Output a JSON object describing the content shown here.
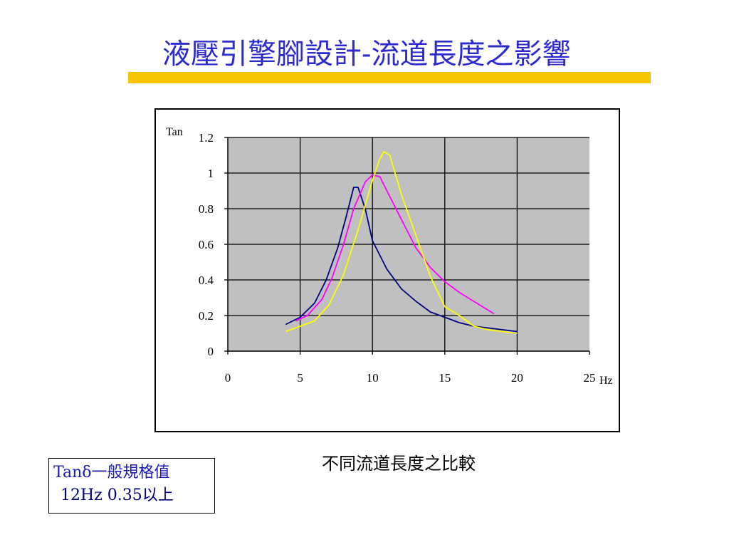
{
  "slide": {
    "title": "液壓引擎腳設計-流道長度之影響",
    "caption": "不同流道長度之比較",
    "note_line1": "Tanδ一般規格值",
    "note_line2": "12Hz 0.35以上",
    "colors": {
      "title": "#2b2bd0",
      "underline": "#f6c400",
      "plot_bg": "#c0c0c0"
    }
  },
  "chart_data": {
    "type": "line",
    "title": "",
    "xlabel": "Hz",
    "ylabel": "Tan",
    "xlim": [
      0,
      25
    ],
    "ylim": [
      0,
      1.2
    ],
    "x_ticks": [
      "0",
      "5",
      "10",
      "15",
      "20",
      "25"
    ],
    "y_ticks": [
      "0",
      "0.2",
      "0.4",
      "0.6",
      "0.8",
      "1",
      "1.2"
    ],
    "grid": true,
    "legend": "none",
    "series": [
      {
        "color": "#000080",
        "points": [
          [
            4,
            0.15
          ],
          [
            5,
            0.19
          ],
          [
            6,
            0.27
          ],
          [
            6.8,
            0.4
          ],
          [
            7.6,
            0.58
          ],
          [
            8.2,
            0.76
          ],
          [
            8.7,
            0.92
          ],
          [
            9,
            0.92
          ],
          [
            9.5,
            0.8
          ],
          [
            10,
            0.62
          ],
          [
            11,
            0.46
          ],
          [
            12,
            0.35
          ],
          [
            13,
            0.28
          ],
          [
            14,
            0.22
          ],
          [
            15,
            0.19
          ],
          [
            16,
            0.16
          ],
          [
            17,
            0.14
          ],
          [
            18,
            0.13
          ],
          [
            19,
            0.12
          ],
          [
            20,
            0.11
          ]
        ]
      },
      {
        "color": "#ff00ff",
        "points": [
          [
            4.7,
            0.17
          ],
          [
            5.5,
            0.2
          ],
          [
            6.5,
            0.29
          ],
          [
            7.2,
            0.41
          ],
          [
            8,
            0.6
          ],
          [
            8.7,
            0.8
          ],
          [
            9.5,
            0.95
          ],
          [
            10,
            0.99
          ],
          [
            10.5,
            0.98
          ],
          [
            11,
            0.9
          ],
          [
            12,
            0.74
          ],
          [
            13,
            0.58
          ],
          [
            14,
            0.47
          ],
          [
            15,
            0.39
          ],
          [
            16,
            0.33
          ],
          [
            17,
            0.28
          ],
          [
            18,
            0.23
          ],
          [
            18.4,
            0.21
          ]
        ]
      },
      {
        "color": "#ffff00",
        "points": [
          [
            4,
            0.11
          ],
          [
            5,
            0.14
          ],
          [
            6,
            0.17
          ],
          [
            7,
            0.26
          ],
          [
            8,
            0.43
          ],
          [
            9,
            0.68
          ],
          [
            10,
            0.96
          ],
          [
            10.5,
            1.08
          ],
          [
            10.8,
            1.12
          ],
          [
            11.2,
            1.1
          ],
          [
            12,
            0.88
          ],
          [
            13,
            0.65
          ],
          [
            14,
            0.42
          ],
          [
            15,
            0.25
          ],
          [
            16,
            0.2
          ],
          [
            17,
            0.14
          ],
          [
            18,
            0.12
          ],
          [
            19,
            0.11
          ],
          [
            20,
            0.1
          ]
        ]
      }
    ]
  }
}
